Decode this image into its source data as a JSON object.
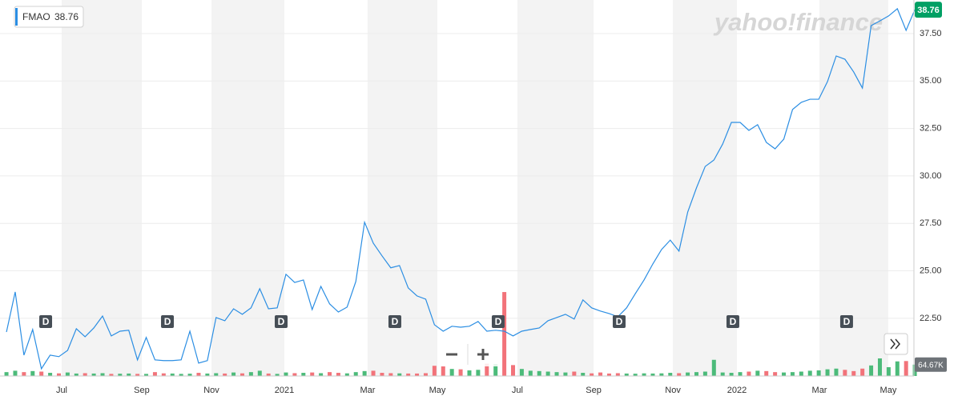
{
  "chart_data": {
    "type": "line",
    "watermark": "yahoo!finance",
    "xlim": [
      -0.74,
      103.9
    ],
    "xticks": [
      {
        "value": 6.32,
        "label": "Jul"
      },
      {
        "value": 15.49,
        "label": "Sep"
      },
      {
        "value": 23.47,
        "label": "Nov"
      },
      {
        "value": 31.82,
        "label": "2021"
      },
      {
        "value": 41.35,
        "label": "Mar"
      },
      {
        "value": 49.33,
        "label": "May"
      },
      {
        "value": 58.5,
        "label": "Jul"
      },
      {
        "value": 67.22,
        "label": "Sep"
      },
      {
        "value": 76.3,
        "label": "Nov"
      },
      {
        "value": 83.63,
        "label": "2022"
      },
      {
        "value": 93.08,
        "label": "Mar"
      },
      {
        "value": 100.96,
        "label": "May"
      }
    ],
    "ylim": [
      19.46,
      39.27
    ],
    "yticks": [
      {
        "value": 22.5,
        "label": "22.50"
      },
      {
        "value": 25,
        "label": "25.00"
      },
      {
        "value": 27.5,
        "label": "27.50"
      },
      {
        "value": 30,
        "label": "30.00"
      },
      {
        "value": 32.5,
        "label": "32.50"
      },
      {
        "value": 35,
        "label": "35.00"
      },
      {
        "value": 37.5,
        "label": "37.50"
      }
    ],
    "grid": true,
    "series": [
      {
        "name": "FMAO",
        "color": "#2b8ee3",
        "values": [
          21.78,
          23.89,
          20.56,
          21.91,
          19.84,
          20.56,
          20.48,
          20.81,
          21.95,
          21.53,
          21.99,
          22.62,
          21.57,
          21.82,
          21.87,
          20.31,
          21.49,
          20.31,
          20.27,
          20.27,
          20.31,
          21.82,
          20.14,
          20.27,
          22.54,
          22.37,
          23.0,
          22.71,
          23.05,
          24.06,
          23.0,
          23.05,
          24.82,
          24.39,
          24.52,
          22.96,
          24.18,
          23.26,
          22.83,
          23.09,
          24.44,
          27.56,
          26.46,
          25.79,
          25.16,
          25.28,
          24.1,
          23.68,
          23.51,
          22.16,
          21.82,
          22.08,
          22.03,
          22.08,
          22.33,
          21.82,
          21.87,
          21.82,
          21.57,
          21.82,
          21.91,
          21.99,
          22.37,
          22.54,
          22.71,
          22.46,
          23.47,
          23.05,
          22.88,
          22.75,
          22.58,
          23.05,
          23.8,
          24.52,
          25.36,
          26.12,
          26.62,
          26.04,
          28.1,
          29.37,
          30.5,
          30.84,
          31.68,
          32.82,
          32.82,
          32.4,
          32.7,
          31.77,
          31.43,
          31.94,
          33.5,
          33.88,
          34.04,
          34.04,
          34.97,
          36.32,
          36.15,
          35.48,
          34.63,
          37.92,
          38.17,
          38.43,
          38.81,
          37.67,
          38.76
        ]
      }
    ],
    "last_price_color": "#00a064",
    "volume": {
      "ylim": [
        0,
        500000
      ],
      "up_color": "#4cbb7a",
      "down_color": "#f2737a",
      "last_value_label": "64.67K",
      "values": [
        22000,
        30000,
        22000,
        28000,
        25000,
        18000,
        15000,
        20000,
        14000,
        16000,
        14000,
        16000,
        12000,
        13000,
        14000,
        12000,
        12000,
        22000,
        15000,
        14000,
        12000,
        13000,
        18000,
        14000,
        16000,
        14000,
        20000,
        15000,
        22000,
        30000,
        14000,
        12000,
        20000,
        16000,
        18000,
        20000,
        16000,
        22000,
        18000,
        15000,
        22000,
        28000,
        30000,
        18000,
        16000,
        15000,
        14000,
        14000,
        16000,
        58000,
        55000,
        40000,
        38000,
        32000,
        35000,
        70000,
        68000,
        477000,
        62000,
        40000,
        30000,
        28000,
        25000,
        22000,
        20000,
        25000,
        18000,
        15000,
        20000,
        14000,
        16000,
        14000,
        13000,
        15000,
        14000,
        15000,
        18000,
        16000,
        20000,
        22000,
        25000,
        92000,
        20000,
        18000,
        22000,
        25000,
        30000,
        28000,
        22000,
        20000,
        22000,
        25000,
        30000,
        32000,
        38000,
        42000,
        35000,
        28000,
        42000,
        60000,
        100000,
        50000,
        83000,
        85000,
        64670
      ]
    },
    "dividends": {
      "label": "D",
      "x": [
        4.49,
        18.43,
        31.45,
        44.47,
        56.3,
        70.15,
        83.17,
        96.19
      ]
    }
  }
}
